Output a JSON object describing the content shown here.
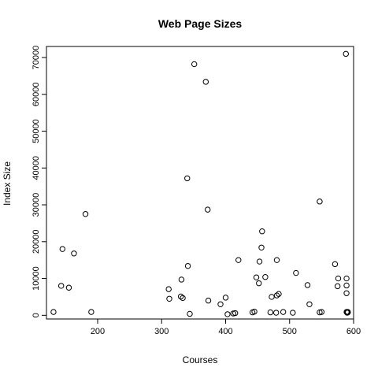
{
  "chart_data": {
    "type": "scatter",
    "title": "Web Page Sizes",
    "xlabel": "Courses",
    "ylabel": "Index Size",
    "xlim": [
      120,
      600
    ],
    "ylim": [
      -1000,
      73000
    ],
    "xticks": [
      200,
      300,
      400,
      500,
      600
    ],
    "yticks": [
      0,
      10000,
      20000,
      30000,
      40000,
      50000,
      60000,
      70000
    ],
    "grid": false,
    "legend": "none",
    "point_style": "open-circle",
    "colors": {
      "points": "#000000",
      "axes": "#000000",
      "background": "#ffffff"
    },
    "points": [
      [
        131,
        900
      ],
      [
        143,
        8000
      ],
      [
        145,
        18000
      ],
      [
        155,
        7500
      ],
      [
        163,
        16800
      ],
      [
        181,
        27500
      ],
      [
        190,
        900
      ],
      [
        311,
        7100
      ],
      [
        312,
        4500
      ],
      [
        330,
        5100
      ],
      [
        331,
        9700
      ],
      [
        333,
        4700
      ],
      [
        340,
        37200
      ],
      [
        341,
        13400
      ],
      [
        344,
        400
      ],
      [
        351,
        68200
      ],
      [
        369,
        63400
      ],
      [
        372,
        28700
      ],
      [
        373,
        4000
      ],
      [
        392,
        3000
      ],
      [
        400,
        4800
      ],
      [
        403,
        300
      ],
      [
        412,
        500
      ],
      [
        415,
        600
      ],
      [
        420,
        15000
      ],
      [
        442,
        800
      ],
      [
        445,
        1000
      ],
      [
        448,
        10300
      ],
      [
        452,
        8700
      ],
      [
        453,
        14600
      ],
      [
        456,
        18400
      ],
      [
        457,
        22800
      ],
      [
        462,
        10400
      ],
      [
        470,
        800
      ],
      [
        472,
        5000
      ],
      [
        479,
        700
      ],
      [
        480,
        15000
      ],
      [
        480,
        5400
      ],
      [
        483,
        5800
      ],
      [
        490,
        900
      ],
      [
        505,
        700
      ],
      [
        510,
        11500
      ],
      [
        528,
        8200
      ],
      [
        531,
        3000
      ],
      [
        547,
        30900
      ],
      [
        547,
        800
      ],
      [
        550,
        900
      ],
      [
        571,
        13900
      ],
      [
        575,
        7900
      ],
      [
        576,
        10000
      ],
      [
        588,
        71000
      ],
      [
        589,
        6000
      ],
      [
        589,
        8100
      ],
      [
        589,
        10000
      ],
      [
        589,
        900
      ],
      [
        590,
        900
      ],
      [
        590,
        700
      ],
      [
        591,
        800
      ],
      [
        591,
        900
      ]
    ]
  }
}
